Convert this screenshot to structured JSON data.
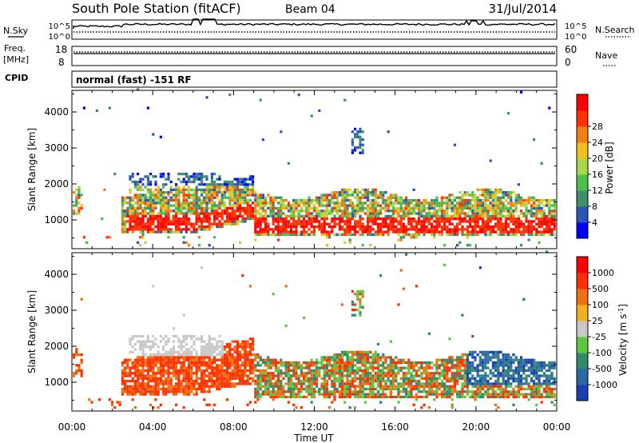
{
  "header": {
    "station": "South Pole Station (fitACF)",
    "beam": "Beam 04",
    "date": "31/Jul/2014"
  },
  "strip_labels": {
    "nsky": "N.Sky",
    "nsearch": "N.Search",
    "freq": "Freq.",
    "freq_unit": "[MHz]",
    "nave": "Nave",
    "cpid": "CPID",
    "mode": "normal (fast) -151 RF",
    "nsky_ticks": [
      "10^5",
      "10^0"
    ],
    "freq_ticks": [
      "18",
      "8"
    ],
    "nave_ticks": [
      "60",
      "0"
    ]
  },
  "chart_data": [
    {
      "type": "heatmap",
      "panel": "power",
      "ylabel": "Slant Range [km]",
      "yticks": [
        1000,
        2000,
        3000,
        4000
      ],
      "ylim": [
        200,
        4600
      ],
      "xlim": [
        0,
        24
      ],
      "colorbar": {
        "label": "Power [dB]",
        "ticks": [
          "4",
          "8",
          "12",
          "16",
          "20",
          "24",
          "28"
        ],
        "colors": [
          "#0000ff",
          "#2b55b8",
          "#3f8f6a",
          "#4cbf4c",
          "#a8d84a",
          "#f0c020",
          "#f08010",
          "#ff3300",
          "#ff0000"
        ]
      }
    },
    {
      "type": "heatmap",
      "panel": "velocity",
      "ylabel": "Slant Range [km]",
      "yticks": [
        1000,
        2000,
        3000,
        4000
      ],
      "ylim": [
        200,
        4600
      ],
      "xlim": [
        0,
        24
      ],
      "xticks": [
        "00:00",
        "04:00",
        "08:00",
        "12:00",
        "16:00",
        "20:00",
        "00:00"
      ],
      "xlabel": "Time UT",
      "colorbar": {
        "label": "Velocity [m s",
        "label_sup": "-1",
        "label_end": "]",
        "ticks": [
          "1000",
          "500",
          "100",
          "25",
          "-25",
          "-100",
          "-500",
          "-1000"
        ],
        "colors": [
          "#1a3fb0",
          "#2a6aa0",
          "#2f8a6a",
          "#5cc840",
          "#c8c8c8",
          "#f0b020",
          "#f07010",
          "#ff3000",
          "#ff0000"
        ]
      }
    }
  ]
}
